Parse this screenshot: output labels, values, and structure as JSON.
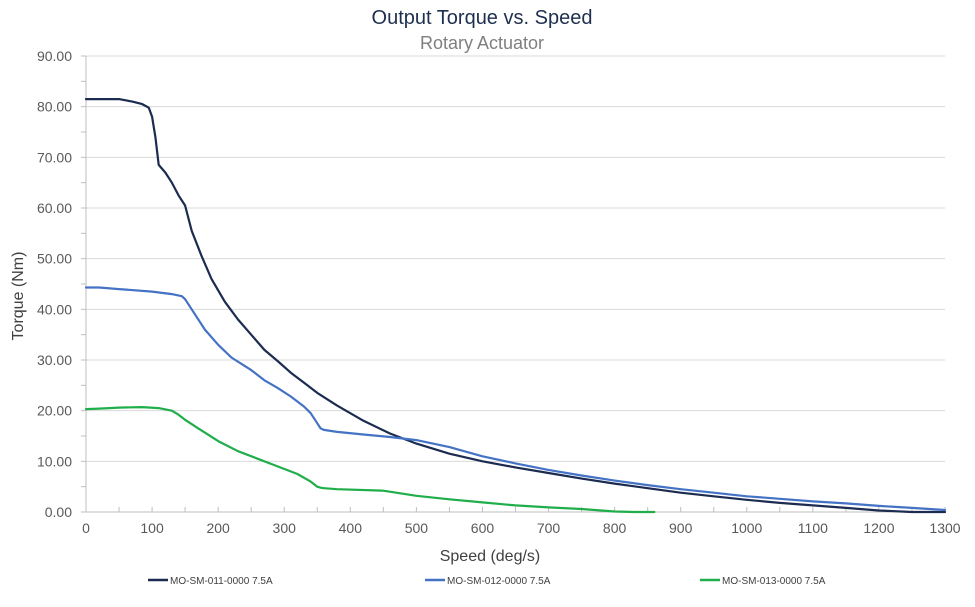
{
  "chart_data": {
    "type": "line",
    "title": "Output Torque vs. Speed",
    "subtitle": "Rotary Actuator",
    "xlabel": "Speed (deg/s)",
    "ylabel": "Torque (Nm)",
    "xlim": [
      0,
      1300
    ],
    "ylim": [
      0,
      90
    ],
    "xticks": [
      "0",
      "100",
      "200",
      "300",
      "400",
      "500",
      "600",
      "700",
      "800",
      "900",
      "1000",
      "1100",
      "1200",
      "1300"
    ],
    "yticks": [
      "0.00",
      "10.00",
      "20.00",
      "30.00",
      "40.00",
      "50.00",
      "60.00",
      "70.00",
      "80.00",
      "90.00"
    ],
    "grid": true,
    "legend": "bottom",
    "series": [
      {
        "name": "MO-SM-011-0000 7.5A",
        "color": "#1c2b50",
        "x": [
          0,
          20,
          50,
          70,
          85,
          95,
          100,
          105,
          110,
          120,
          130,
          140,
          150,
          160,
          175,
          190,
          210,
          230,
          250,
          270,
          290,
          310,
          330,
          350,
          380,
          420,
          460,
          500,
          550,
          600,
          650,
          700,
          750,
          800,
          850,
          900,
          950,
          1000,
          1050,
          1100,
          1150,
          1200,
          1250,
          1300
        ],
        "y": [
          81.5,
          81.5,
          81.5,
          81.0,
          80.5,
          79.8,
          78.0,
          74.0,
          68.5,
          67.0,
          65.0,
          62.5,
          60.5,
          55.5,
          50.5,
          46.0,
          41.5,
          38.0,
          35.0,
          32.0,
          29.8,
          27.5,
          25.5,
          23.5,
          21.0,
          18.0,
          15.5,
          13.5,
          11.5,
          10.0,
          8.8,
          7.7,
          6.6,
          5.6,
          4.7,
          3.8,
          3.1,
          2.4,
          1.8,
          1.3,
          0.8,
          0.3,
          0.0,
          0.0
        ]
      },
      {
        "name": "MO-SM-012-0000 7.5A",
        "color": "#4472c4",
        "x": [
          0,
          20,
          50,
          100,
          130,
          145,
          150,
          160,
          180,
          200,
          220,
          250,
          270,
          290,
          310,
          330,
          340,
          350,
          355,
          360,
          380,
          420,
          460,
          500,
          550,
          600,
          650,
          700,
          750,
          800,
          850,
          900,
          950,
          1000,
          1050,
          1100,
          1150,
          1200,
          1250,
          1300
        ],
        "y": [
          44.3,
          44.3,
          44.0,
          43.5,
          43.0,
          42.6,
          42.0,
          40.0,
          36.0,
          33.0,
          30.5,
          28.0,
          26.0,
          24.5,
          22.8,
          20.8,
          19.5,
          17.5,
          16.5,
          16.2,
          15.8,
          15.3,
          14.8,
          14.2,
          12.8,
          11.0,
          9.6,
          8.3,
          7.2,
          6.2,
          5.3,
          4.5,
          3.8,
          3.1,
          2.6,
          2.1,
          1.7,
          1.2,
          0.8,
          0.4
        ]
      },
      {
        "name": "MO-SM-013-0000 7.5A",
        "color": "#1fae4a",
        "x": [
          0,
          20,
          50,
          85,
          110,
          130,
          140,
          150,
          170,
          200,
          230,
          260,
          290,
          320,
          340,
          350,
          355,
          360,
          380,
          450,
          500,
          550,
          600,
          650,
          700,
          750,
          780,
          800,
          830,
          860
        ],
        "y": [
          20.3,
          20.4,
          20.6,
          20.7,
          20.5,
          20.0,
          19.2,
          18.2,
          16.5,
          14.0,
          12.0,
          10.5,
          9.0,
          7.5,
          6.0,
          5.0,
          4.8,
          4.7,
          4.5,
          4.2,
          3.2,
          2.5,
          1.9,
          1.3,
          0.9,
          0.6,
          0.3,
          0.1,
          0.0,
          0.0
        ]
      }
    ]
  }
}
